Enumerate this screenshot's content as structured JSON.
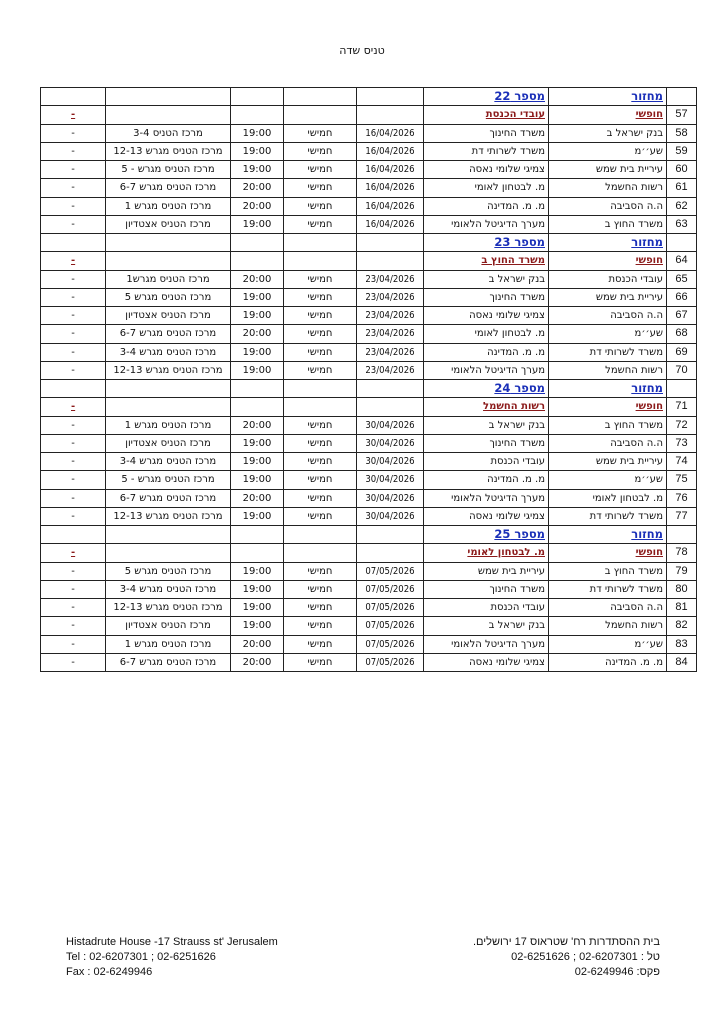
{
  "title": "טניס שדה",
  "rounds": [
    {
      "label": "מחזור",
      "number": "מספר 22",
      "bye": {
        "num": "57",
        "label": "חופשי",
        "team": "עובדי הכנסת",
        "result": "-"
      },
      "matches": [
        [
          "58",
          "בנק ישראל ב",
          "משרד החינוך",
          "16/04/2026",
          "חמישי",
          "19:00",
          "מרכז הטניס 3-4",
          "-"
        ],
        [
          "59",
          "שע׳׳מ",
          "משרד לשרותי דת",
          "16/04/2026",
          "חמישי",
          "19:00",
          "מרכז הטניס מגרש 12-13",
          "-"
        ],
        [
          "60",
          "עיריית בית שמש",
          "צמיגי שלומי נאסה",
          "16/04/2026",
          "חמישי",
          "19:00",
          "מרכז הטניס מגרש - 5",
          "-"
        ],
        [
          "61",
          "רשות החשמל",
          "מ. לבטחון לאומי",
          "16/04/2026",
          "חמישי",
          "20:00",
          "מרכז הטניס מגרש 6-7",
          "-"
        ],
        [
          "62",
          "ה.ה הסביבה",
          "מ. מ. המדינה",
          "16/04/2026",
          "חמישי",
          "20:00",
          "מרכז הטניס מגרש 1",
          "-"
        ],
        [
          "63",
          "משרד החוץ ב",
          "מערך הדיגיטל הלאומי",
          "16/04/2026",
          "חמישי",
          "19:00",
          "מרכז הטניס אצטדיון",
          "-"
        ]
      ]
    },
    {
      "label": "מחזור",
      "number": "מספר 23",
      "bye": {
        "num": "64",
        "label": "חופשי",
        "team": "משרד החוץ ב",
        "result": "-"
      },
      "matches": [
        [
          "65",
          "עובדי הכנסת",
          "בנק ישראל ב",
          "23/04/2026",
          "חמישי",
          "20:00",
          "מרכז הטניס מגרש1",
          "-"
        ],
        [
          "66",
          "עיריית בית שמש",
          "משרד החינוך",
          "23/04/2026",
          "חמישי",
          "19:00",
          "מרכז הטניס מגרש 5",
          "-"
        ],
        [
          "67",
          "ה.ה הסביבה",
          "צמיגי שלומי נאסה",
          "23/04/2026",
          "חמישי",
          "19:00",
          "מרכז הטניס אצטדיון",
          "-"
        ],
        [
          "68",
          "שע׳׳מ",
          "מ. לבטחון לאומי",
          "23/04/2026",
          "חמישי",
          "20:00",
          "מרכז הטניס מגרש 6-7",
          "-"
        ],
        [
          "69",
          "משרד לשרותי דת",
          "מ. מ. המדינה",
          "23/04/2026",
          "חמישי",
          "19:00",
          "מרכז הטניס מגרש 3-4",
          "-"
        ],
        [
          "70",
          "רשות החשמל",
          "מערך הדיגיטל הלאומי",
          "23/04/2026",
          "חמישי",
          "19:00",
          "מרכז הטניס מגרש 12-13",
          "-"
        ]
      ]
    },
    {
      "label": "מחזור",
      "number": "מספר 24",
      "bye": {
        "num": "71",
        "label": "חופשי",
        "team": "רשות החשמל",
        "result": "-"
      },
      "matches": [
        [
          "72",
          "משרד החוץ ב",
          "בנק ישראל ב",
          "30/04/2026",
          "חמישי",
          "20:00",
          "מרכז הטניס מגרש 1",
          "-"
        ],
        [
          "73",
          "ה.ה הסביבה",
          "משרד החינוך",
          "30/04/2026",
          "חמישי",
          "19:00",
          "מרכז הטניס אצטדיון",
          "-"
        ],
        [
          "74",
          "עיריית בית שמש",
          "עובדי הכנסת",
          "30/04/2026",
          "חמישי",
          "19:00",
          "מרכז הטניס מגרש 3-4",
          "-"
        ],
        [
          "75",
          "שע׳׳מ",
          "מ. מ. המדינה",
          "30/04/2026",
          "חמישי",
          "19:00",
          "מרכז הטניס מגרש - 5",
          "-"
        ],
        [
          "76",
          "מ. לבטחון לאומי",
          "מערך הדיגיטל הלאומי",
          "30/04/2026",
          "חמישי",
          "20:00",
          "מרכז הטניס מגרש 6-7",
          "-"
        ],
        [
          "77",
          "משרד לשרותי דת",
          "צמיגי שלומי נאסה",
          "30/04/2026",
          "חמישי",
          "19:00",
          "מרכז הטניס מגרש 12-13",
          "-"
        ]
      ]
    },
    {
      "label": "מחזור",
      "number": "מספר 25",
      "bye": {
        "num": "78",
        "label": "חופשי",
        "team": "מ. לבטחון לאומי",
        "result": "-"
      },
      "matches": [
        [
          "79",
          "משרד החוץ ב",
          "עיריית בית שמש",
          "07/05/2026",
          "חמישי",
          "19:00",
          "מרכז הטניס מגרש 5",
          "-"
        ],
        [
          "80",
          "משרד לשרותי דת",
          "משרד החינוך",
          "07/05/2026",
          "חמישי",
          "19:00",
          "מרכז הטניס מגרש 3-4",
          "-"
        ],
        [
          "81",
          "ה.ה הסביבה",
          "עובדי הכנסת",
          "07/05/2026",
          "חמישי",
          "19:00",
          "מרכז הטניס מגרש 12-13",
          "-"
        ],
        [
          "82",
          "רשות החשמל",
          "בנק ישראל ב",
          "07/05/2026",
          "חמישי",
          "19:00",
          "מרכז הטניס אצטדיון",
          "-"
        ],
        [
          "83",
          "שע׳׳מ",
          "מערך הדיגיטל הלאומי",
          "07/05/2026",
          "חמישי",
          "20:00",
          "מרכז הטניס מגרש 1",
          "-"
        ],
        [
          "84",
          "מ. מ. המדינה",
          "צמיגי שלומי נאסה",
          "07/05/2026",
          "חמישי",
          "20:00",
          "מרכז הטניס מגרש 6-7",
          "-"
        ]
      ]
    }
  ],
  "footer": {
    "en": [
      "Histadrute House -17 Strauss st' Jerusalem",
      "Tel  : 02-6207301 ; 02-6251626",
      "Fax : 02-6249946"
    ],
    "he": [
      "בית ההסתדרות רח' שטראוס 17 ירושלים.",
      "טל  : 02-6207301 ; 02-6251626",
      "פקס: 02-6249946"
    ]
  },
  "colors": {
    "round_header": "#1a2fb8",
    "bye_row": "#8b1a1a"
  }
}
